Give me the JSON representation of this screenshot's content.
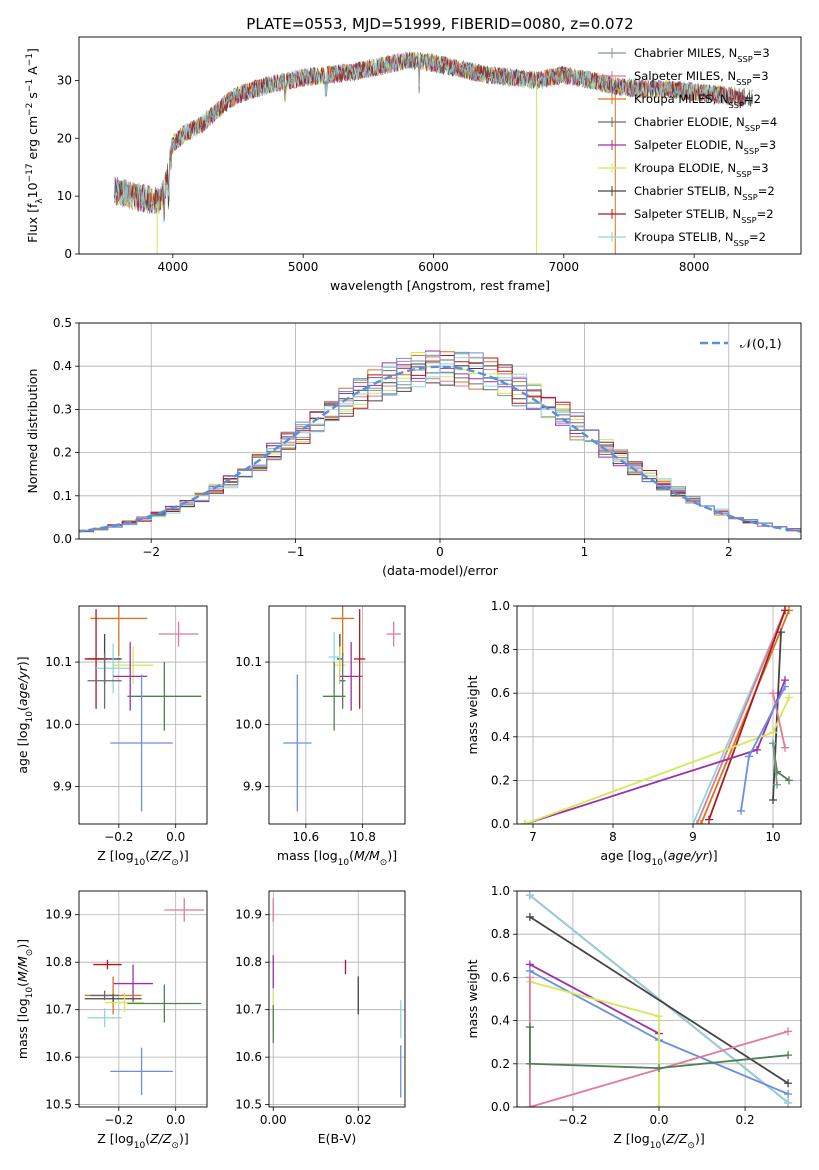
{
  "figure_title": "PLATE=0553, MJD=51999, FIBERID=0080, z=0.072",
  "colors": {
    "chabrier_miles": "#7a9a8a",
    "salpeter_miles": "#e07a96",
    "kroupa_miles": "#d9741e",
    "chabrier_elodie": "#6b6b6b",
    "salpeter_elodie": "#9b30a8",
    "kroupa_elodie": "#d4e85a",
    "chabrier_stelib": "#444444",
    "salpeter_stelib": "#b0181e",
    "kroupa_stelib": "#8fd6dc",
    "normal_curve": "#5b8fd9",
    "blue_fit": "#6a8fe0",
    "green_fit": "#4f7f55"
  },
  "chart_data": [
    {
      "id": "spectrum",
      "type": "line",
      "title": "PLATE=0553, MJD=51999, FIBERID=0080, z=0.072",
      "xlabel": "wavelength [Angstrom, rest frame]",
      "ylabel": "Flux [f$_\\lambda$10$^{-17}$ erg cm$^{-2}$ s$^{-1}$ A$^{-1}$]",
      "xlim": [
        3280,
        8820
      ],
      "ylim": [
        0,
        37.5
      ],
      "xticks": [
        "4000",
        "5000",
        "6000",
        "7000",
        "8000"
      ],
      "yticks": [
        "0",
        "10",
        "20",
        "30"
      ],
      "grid": false,
      "legend_position": "top-right",
      "series": [
        {
          "name": "Chabrier MILES, N$_{SSP}$=3",
          "color_key": "chabrier_miles"
        },
        {
          "name": "Salpeter MILES, N$_{SSP}$=3",
          "color_key": "salpeter_miles"
        },
        {
          "name": "Kroupa MILES, N$_{SSP}$=2",
          "color_key": "kroupa_miles"
        },
        {
          "name": "Chabrier ELODIE, N$_{SSP}$=4",
          "color_key": "chabrier_elodie"
        },
        {
          "name": "Salpeter ELODIE, N$_{SSP}$=3",
          "color_key": "salpeter_elodie"
        },
        {
          "name": "Kroupa ELODIE, N$_{SSP}$=3",
          "color_key": "kroupa_elodie"
        },
        {
          "name": "Chabrier STELIB, N$_{SSP}$=2",
          "color_key": "chabrier_stelib"
        },
        {
          "name": "Salpeter STELIB, N$_{SSP}$=2",
          "color_key": "salpeter_stelib"
        },
        {
          "name": "Kroupa STELIB, N$_{SSP}$=2",
          "color_key": "kroupa_stelib"
        }
      ],
      "continuum": {
        "x": [
          3550,
          3700,
          3800,
          3900,
          3950,
          4000,
          4100,
          4200,
          4300,
          4400,
          4500,
          4700,
          4900,
          5000,
          5200,
          5400,
          5600,
          5800,
          6000,
          6200,
          6400,
          6600,
          6800,
          7000,
          7200,
          7400,
          7600,
          7800,
          8000,
          8200,
          8400,
          8600,
          8800
        ],
        "y": [
          11,
          10,
          9.5,
          9,
          12,
          19,
          21,
          22,
          24,
          26,
          27.5,
          29,
          30,
          30.5,
          31,
          31.5,
          32.5,
          33.5,
          33,
          32,
          31,
          30.5,
          30,
          31,
          30,
          29,
          28.5,
          28.5,
          28,
          27.5,
          27,
          26.5,
          26
        ]
      }
    },
    {
      "id": "residuals",
      "type": "histogram",
      "xlabel": "(data-model)/error",
      "ylabel": "Normed distribution",
      "xlim": [
        -2.5,
        2.5
      ],
      "ylim": [
        0,
        0.5
      ],
      "xticks": [
        "−2",
        "−1",
        "0",
        "1",
        "2"
      ],
      "yticks": [
        "0.0",
        "0.1",
        "0.2",
        "0.3",
        "0.4",
        "0.5"
      ],
      "grid": true,
      "legend_position": "top-right",
      "reference_curve": {
        "name": "$\\mathcal{N}(0,1)$",
        "mean": 0,
        "sigma": 1
      },
      "bin_width": 0.1
    },
    {
      "id": "age_vs_Z",
      "type": "scatter",
      "xlabel": "Z [log$_{10}$($Z/Z_\\odot$)]",
      "ylabel": "age  [log$_{10}$($age/yr$)]",
      "xlim": [
        -0.34,
        0.11
      ],
      "ylim": [
        9.84,
        10.19
      ],
      "xticks": [
        "−0.2",
        "0.0"
      ],
      "yticks": [
        "9.9",
        "10.0",
        "10.1"
      ],
      "grid": true,
      "points": [
        {
          "color_key": "kroupa_miles",
          "x": -0.2,
          "xerr": 0.1,
          "y": 10.17,
          "yerr": 0.06
        },
        {
          "color_key": "salpeter_miles",
          "x": 0.01,
          "xerr": 0.07,
          "y": 10.145,
          "yerr": 0.02
        },
        {
          "color_key": "chabrier_stelib",
          "x": -0.25,
          "xerr": 0.06,
          "y": 10.105,
          "yerr": 0.04
        },
        {
          "color_key": "salpeter_stelib",
          "x": -0.28,
          "xerr": 0.04,
          "y": 10.105,
          "yerr": 0.08
        },
        {
          "color_key": "kroupa_elodie",
          "x": -0.15,
          "xerr": 0.07,
          "y": 10.095,
          "yerr": 0.03
        },
        {
          "color_key": "kroupa_stelib",
          "x": -0.22,
          "xerr": 0.06,
          "y": 10.09,
          "yerr": 0.04
        },
        {
          "color_key": "salpeter_elodie",
          "x": -0.16,
          "xerr": 0.06,
          "y": 10.077,
          "yerr": 0.055
        },
        {
          "color_key": "chabrier_elodie",
          "x": -0.25,
          "xerr": 0.06,
          "y": 10.07,
          "yerr": 0.045
        },
        {
          "color_key": "green_fit",
          "x": -0.04,
          "xerr": 0.13,
          "y": 10.045,
          "yerr": 0.055
        },
        {
          "color_key": "blue_fit",
          "x": -0.12,
          "xerr": 0.11,
          "y": 9.97,
          "yerr": 0.11
        }
      ]
    },
    {
      "id": "age_vs_mass",
      "type": "scatter",
      "xlabel": "mass [log$_{10}$($M/M_\\odot$)]",
      "ylabel": "",
      "xlim": [
        10.47,
        10.95
      ],
      "ylim": [
        9.84,
        10.19
      ],
      "xticks": [
        "10.6",
        "10.8"
      ],
      "yticks": [
        "9.9",
        "10.0",
        "10.1"
      ],
      "grid": true,
      "points": [
        {
          "color_key": "kroupa_miles",
          "x": 10.73,
          "xerr": 0.04,
          "y": 10.17,
          "yerr": 0.06
        },
        {
          "color_key": "salpeter_miles",
          "x": 10.91,
          "xerr": 0.025,
          "y": 10.145,
          "yerr": 0.02
        },
        {
          "color_key": "chabrier_stelib",
          "x": 10.72,
          "xerr": 0.01,
          "y": 10.105,
          "yerr": 0.04
        },
        {
          "color_key": "salpeter_stelib",
          "x": 10.79,
          "xerr": 0.02,
          "y": 10.105,
          "yerr": 0.08
        },
        {
          "color_key": "kroupa_elodie",
          "x": 10.72,
          "xerr": 0.02,
          "y": 10.095,
          "yerr": 0.03
        },
        {
          "color_key": "kroupa_stelib",
          "x": 10.7,
          "xerr": 0.02,
          "y": 10.108,
          "yerr": 0.04
        },
        {
          "color_key": "salpeter_elodie",
          "x": 10.76,
          "xerr": 0.04,
          "y": 10.077,
          "yerr": 0.055
        },
        {
          "color_key": "chabrier_elodie",
          "x": 10.73,
          "xerr": 0.01,
          "y": 10.07,
          "yerr": 0.045
        },
        {
          "color_key": "green_fit",
          "x": 10.7,
          "xerr": 0.04,
          "y": 10.045,
          "yerr": 0.055
        },
        {
          "color_key": "blue_fit",
          "x": 10.57,
          "xerr": 0.05,
          "y": 9.97,
          "yerr": 0.11
        }
      ]
    },
    {
      "id": "mass_weight_vs_age",
      "type": "line",
      "xlabel": "age  [log$_{10}$($age/yr$)]",
      "ylabel": "mass weight",
      "xlim": [
        6.8,
        10.35
      ],
      "ylim": [
        0,
        1
      ],
      "xticks": [
        "7",
        "8",
        "9",
        "10"
      ],
      "yticks": [
        "0.0",
        "0.2",
        "0.4",
        "0.6",
        "0.8",
        "1.0"
      ],
      "grid": true,
      "series": [
        {
          "color_key": "kroupa_stelib",
          "x": [
            9.0,
            10.15
          ],
          "y": [
            0.0,
            0.98
          ]
        },
        {
          "color_key": "salpeter_miles",
          "x": [
            9.05,
            10.15
          ],
          "y": [
            0.0,
            0.98
          ]
        },
        {
          "color_key": "kroupa_miles",
          "x": [
            9.1,
            10.2
          ],
          "y": [
            0.0,
            0.98
          ]
        },
        {
          "color_key": "salpeter_stelib",
          "x": [
            9.2,
            10.15
          ],
          "y": [
            0.02,
            0.98
          ]
        },
        {
          "color_key": "chabrier_stelib",
          "x": [
            10.0,
            10.1
          ],
          "y": [
            0.11,
            0.88
          ]
        },
        {
          "color_key": "salpeter_elodie",
          "x": [
            6.9,
            9.8,
            10.15
          ],
          "y": [
            0.0,
            0.34,
            0.66
          ]
        },
        {
          "color_key": "kroupa_elodie",
          "x": [
            6.9,
            10.0,
            10.2
          ],
          "y": [
            0.0,
            0.42,
            0.58
          ]
        },
        {
          "color_key": "salpeter_miles",
          "x": [
            10.0,
            10.15
          ],
          "y": [
            0.6,
            0.35
          ]
        },
        {
          "color_key": "blue_fit",
          "x": [
            9.6,
            9.7,
            10.15
          ],
          "y": [
            0.06,
            0.31,
            0.63
          ]
        },
        {
          "color_key": "green_fit",
          "x": [
            10.0,
            10.05,
            10.2
          ],
          "y": [
            0.37,
            0.24,
            0.2
          ]
        },
        {
          "color_key": "chabrier_miles",
          "x": [
            10.0,
            10.05
          ],
          "y": [
            0.37,
            0.18
          ]
        }
      ]
    },
    {
      "id": "mass_vs_Z",
      "type": "scatter",
      "xlabel": "Z [log$_{10}$($Z/Z_\\odot$)]",
      "ylabel": "mass [log$_{10}$($M/M_\\odot$)]",
      "xlim": [
        -0.34,
        0.11
      ],
      "ylim": [
        10.495,
        10.95
      ],
      "xticks": [
        "−0.2",
        "0.0"
      ],
      "yticks": [
        "10.5",
        "10.6",
        "10.7",
        "10.8",
        "10.9"
      ],
      "grid": true,
      "points": [
        {
          "color_key": "salpeter_miles",
          "x": 0.03,
          "xerr": 0.07,
          "y": 10.91,
          "yerr": 0.025
        },
        {
          "color_key": "salpeter_stelib",
          "x": -0.24,
          "xerr": 0.05,
          "y": 10.795,
          "yerr": 0.01
        },
        {
          "color_key": "salpeter_elodie",
          "x": -0.15,
          "xerr": 0.07,
          "y": 10.755,
          "yerr": 0.04
        },
        {
          "color_key": "kroupa_miles",
          "x": -0.22,
          "xerr": 0.1,
          "y": 10.73,
          "yerr": 0.04
        },
        {
          "color_key": "chabrier_stelib",
          "x": -0.22,
          "xerr": 0.1,
          "y": 10.723,
          "yerr": 0.01
        },
        {
          "color_key": "kroupa_elodie",
          "x": -0.18,
          "xerr": 0.07,
          "y": 10.715,
          "yerr": 0.02
        },
        {
          "color_key": "chabrier_elodie",
          "x": -0.25,
          "xerr": 0.05,
          "y": 10.73,
          "yerr": 0.01
        },
        {
          "color_key": "green_fit",
          "x": -0.04,
          "xerr": 0.13,
          "y": 10.713,
          "yerr": 0.04
        },
        {
          "color_key": "kroupa_stelib",
          "x": -0.25,
          "xerr": 0.06,
          "y": 10.683,
          "yerr": 0.02
        },
        {
          "color_key": "blue_fit",
          "x": -0.12,
          "xerr": 0.11,
          "y": 10.57,
          "yerr": 0.05
        }
      ]
    },
    {
      "id": "mass_vs_ebv",
      "type": "scatter",
      "xlabel": "E(B-V)",
      "ylabel": "",
      "xlim": [
        -0.001,
        0.031
      ],
      "ylim": [
        10.495,
        10.95
      ],
      "xticks": [
        "0.00",
        "0.02"
      ],
      "yticks": [
        "10.5",
        "10.6",
        "10.7",
        "10.8",
        "10.9"
      ],
      "grid": true,
      "points": [
        {
          "color_key": "salpeter_miles",
          "x": 0.0,
          "y": 10.91,
          "yerr": 0.025
        },
        {
          "color_key": "salpeter_elodie",
          "x": 0.0,
          "y": 10.78,
          "yerr": 0.035
        },
        {
          "color_key": "salpeter_stelib",
          "x": 0.017,
          "y": 10.79,
          "yerr": 0.015
        },
        {
          "color_key": "chabrier_stelib",
          "x": 0.02,
          "y": 10.73,
          "yerr": 0.04
        },
        {
          "color_key": "kroupa_elodie",
          "x": 0.0,
          "y": 10.7,
          "yerr": 0.04
        },
        {
          "color_key": "green_fit",
          "x": 0.0,
          "y": 10.67,
          "yerr": 0.04
        },
        {
          "color_key": "kroupa_stelib",
          "x": 0.03,
          "y": 10.68,
          "yerr": 0.04
        },
        {
          "color_key": "blue_fit",
          "x": 0.03,
          "y": 10.57,
          "yerr": 0.055
        }
      ]
    },
    {
      "id": "mass_weight_vs_Z",
      "type": "line",
      "xlabel": "Z [log$_{10}$($Z/Z_\\odot$)]",
      "ylabel": "mass weight",
      "xlim": [
        -0.33,
        0.33
      ],
      "ylim": [
        0,
        1
      ],
      "xticks": [
        "−0.2",
        "0.0",
        "0.2"
      ],
      "yticks": [
        "0.0",
        "0.2",
        "0.4",
        "0.6",
        "0.8",
        "1.0"
      ],
      "grid": true,
      "series": [
        {
          "color_key": "salpeter_stelib",
          "x": [
            -0.3,
            0.3
          ],
          "y": [
            0.98,
            0.02
          ]
        },
        {
          "color_key": "kroupa_stelib",
          "x": [
            -0.3,
            0.3
          ],
          "y": [
            0.98,
            0.02
          ]
        },
        {
          "color_key": "chabrier_stelib",
          "x": [
            -0.3,
            0.3
          ],
          "y": [
            0.88,
            0.11
          ]
        },
        {
          "color_key": "salpeter_elodie",
          "x": [
            -0.3,
            0.0
          ],
          "y": [
            0.66,
            0.34
          ]
        },
        {
          "color_key": "blue_fit",
          "x": [
            -0.3,
            0.0,
            0.3
          ],
          "y": [
            0.63,
            0.31,
            0.06
          ]
        },
        {
          "color_key": "kroupa_elodie",
          "x": [
            -0.3,
            0.0,
            0.0
          ],
          "y": [
            0.58,
            0.42,
            0.0
          ]
        },
        {
          "color_key": "salpeter_miles",
          "x": [
            -0.3,
            -0.3,
            0.3
          ],
          "y": [
            0.6,
            0.0,
            0.35
          ]
        },
        {
          "color_key": "green_fit",
          "x": [
            -0.3,
            -0.3,
            0.0,
            0.3
          ],
          "y": [
            0.37,
            0.2,
            0.18,
            0.24
          ]
        }
      ]
    }
  ]
}
